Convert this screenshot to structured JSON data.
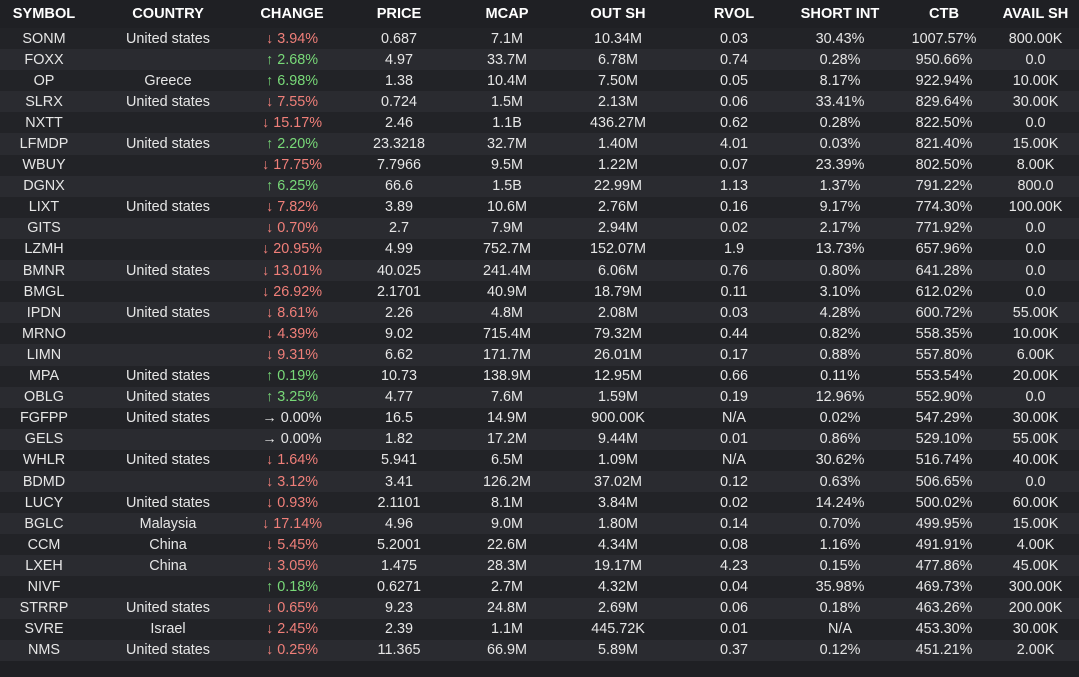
{
  "colors": {
    "background": "#1f2024",
    "row_alt": "#2a2b30",
    "down": "#f07f79",
    "up": "#78d978",
    "text": "#e6e6e6"
  },
  "headers": [
    "SYMBOL",
    "COUNTRY",
    "CHANGE",
    "PRICE",
    "MCAP",
    "OUT SH",
    "RVOL",
    "SHORT INT",
    "CTB",
    "AVAIL SH"
  ],
  "rows": [
    {
      "symbol": "SONM",
      "country": "United states",
      "dir": "down",
      "arrow": "↓",
      "change": "3.94%",
      "price": "0.687",
      "mcap": "7.1M",
      "out_sh": "10.34M",
      "rvol": "0.03",
      "short_int": "30.43%",
      "ctb": "1007.57%",
      "avail_sh": "800.00K"
    },
    {
      "symbol": "FOXX",
      "country": "",
      "dir": "up",
      "arrow": "↑",
      "change": "2.68%",
      "price": "4.97",
      "mcap": "33.7M",
      "out_sh": "6.78M",
      "rvol": "0.74",
      "short_int": "0.28%",
      "ctb": "950.66%",
      "avail_sh": "0.0"
    },
    {
      "symbol": "OP",
      "country": "Greece",
      "dir": "up",
      "arrow": "↑",
      "change": "6.98%",
      "price": "1.38",
      "mcap": "10.4M",
      "out_sh": "7.50M",
      "rvol": "0.05",
      "short_int": "8.17%",
      "ctb": "922.94%",
      "avail_sh": "10.00K"
    },
    {
      "symbol": "SLRX",
      "country": "United states",
      "dir": "down",
      "arrow": "↓",
      "change": "7.55%",
      "price": "0.724",
      "mcap": "1.5M",
      "out_sh": "2.13M",
      "rvol": "0.06",
      "short_int": "33.41%",
      "ctb": "829.64%",
      "avail_sh": "30.00K"
    },
    {
      "symbol": "NXTT",
      "country": "",
      "dir": "down",
      "arrow": "↓",
      "change": "15.17%",
      "price": "2.46",
      "mcap": "1.1B",
      "out_sh": "436.27M",
      "rvol": "0.62",
      "short_int": "0.28%",
      "ctb": "822.50%",
      "avail_sh": "0.0"
    },
    {
      "symbol": "LFMDP",
      "country": "United states",
      "dir": "up",
      "arrow": "↑",
      "change": "2.20%",
      "price": "23.3218",
      "mcap": "32.7M",
      "out_sh": "1.40M",
      "rvol": "4.01",
      "short_int": "0.03%",
      "ctb": "821.40%",
      "avail_sh": "15.00K"
    },
    {
      "symbol": "WBUY",
      "country": "",
      "dir": "down",
      "arrow": "↓",
      "change": "17.75%",
      "price": "7.7966",
      "mcap": "9.5M",
      "out_sh": "1.22M",
      "rvol": "0.07",
      "short_int": "23.39%",
      "ctb": "802.50%",
      "avail_sh": "8.00K"
    },
    {
      "symbol": "DGNX",
      "country": "",
      "dir": "up",
      "arrow": "↑",
      "change": "6.25%",
      "price": "66.6",
      "mcap": "1.5B",
      "out_sh": "22.99M",
      "rvol": "1.13",
      "short_int": "1.37%",
      "ctb": "791.22%",
      "avail_sh": "800.0"
    },
    {
      "symbol": "LIXT",
      "country": "United states",
      "dir": "down",
      "arrow": "↓",
      "change": "7.82%",
      "price": "3.89",
      "mcap": "10.6M",
      "out_sh": "2.76M",
      "rvol": "0.16",
      "short_int": "9.17%",
      "ctb": "774.30%",
      "avail_sh": "100.00K"
    },
    {
      "symbol": "GITS",
      "country": "",
      "dir": "down",
      "arrow": "↓",
      "change": "0.70%",
      "price": "2.7",
      "mcap": "7.9M",
      "out_sh": "2.94M",
      "rvol": "0.02",
      "short_int": "2.17%",
      "ctb": "771.92%",
      "avail_sh": "0.0"
    },
    {
      "symbol": "LZMH",
      "country": "",
      "dir": "down",
      "arrow": "↓",
      "change": "20.95%",
      "price": "4.99",
      "mcap": "752.7M",
      "out_sh": "152.07M",
      "rvol": "1.9",
      "short_int": "13.73%",
      "ctb": "657.96%",
      "avail_sh": "0.0"
    },
    {
      "symbol": "BMNR",
      "country": "United states",
      "dir": "down",
      "arrow": "↓",
      "change": "13.01%",
      "price": "40.025",
      "mcap": "241.4M",
      "out_sh": "6.06M",
      "rvol": "0.76",
      "short_int": "0.80%",
      "ctb": "641.28%",
      "avail_sh": "0.0"
    },
    {
      "symbol": "BMGL",
      "country": "",
      "dir": "down",
      "arrow": "↓",
      "change": "26.92%",
      "price": "2.1701",
      "mcap": "40.9M",
      "out_sh": "18.79M",
      "rvol": "0.11",
      "short_int": "3.10%",
      "ctb": "612.02%",
      "avail_sh": "0.0"
    },
    {
      "symbol": "IPDN",
      "country": "United states",
      "dir": "down",
      "arrow": "↓",
      "change": "8.61%",
      "price": "2.26",
      "mcap": "4.8M",
      "out_sh": "2.08M",
      "rvol": "0.03",
      "short_int": "4.28%",
      "ctb": "600.72%",
      "avail_sh": "55.00K"
    },
    {
      "symbol": "MRNO",
      "country": "",
      "dir": "down",
      "arrow": "↓",
      "change": "4.39%",
      "price": "9.02",
      "mcap": "715.4M",
      "out_sh": "79.32M",
      "rvol": "0.44",
      "short_int": "0.82%",
      "ctb": "558.35%",
      "avail_sh": "10.00K"
    },
    {
      "symbol": "LIMN",
      "country": "",
      "dir": "down",
      "arrow": "↓",
      "change": "9.31%",
      "price": "6.62",
      "mcap": "171.7M",
      "out_sh": "26.01M",
      "rvol": "0.17",
      "short_int": "0.88%",
      "ctb": "557.80%",
      "avail_sh": "6.00K"
    },
    {
      "symbol": "MPA",
      "country": "United states",
      "dir": "up",
      "arrow": "↑",
      "change": "0.19%",
      "price": "10.73",
      "mcap": "138.9M",
      "out_sh": "12.95M",
      "rvol": "0.66",
      "short_int": "0.11%",
      "ctb": "553.54%",
      "avail_sh": "20.00K"
    },
    {
      "symbol": "OBLG",
      "country": "United states",
      "dir": "up",
      "arrow": "↑",
      "change": "3.25%",
      "price": "4.77",
      "mcap": "7.6M",
      "out_sh": "1.59M",
      "rvol": "0.19",
      "short_int": "12.96%",
      "ctb": "552.90%",
      "avail_sh": "0.0"
    },
    {
      "symbol": "FGFPP",
      "country": "United states",
      "dir": "flat",
      "arrow": "→",
      "change": "0.00%",
      "price": "16.5",
      "mcap": "14.9M",
      "out_sh": "900.00K",
      "rvol": "N/A",
      "short_int": "0.02%",
      "ctb": "547.29%",
      "avail_sh": "30.00K"
    },
    {
      "symbol": "GELS",
      "country": "",
      "dir": "flat",
      "arrow": "→",
      "change": "0.00%",
      "price": "1.82",
      "mcap": "17.2M",
      "out_sh": "9.44M",
      "rvol": "0.01",
      "short_int": "0.86%",
      "ctb": "529.10%",
      "avail_sh": "55.00K"
    },
    {
      "symbol": "WHLR",
      "country": "United states",
      "dir": "down",
      "arrow": "↓",
      "change": "1.64%",
      "price": "5.941",
      "mcap": "6.5M",
      "out_sh": "1.09M",
      "rvol": "N/A",
      "short_int": "30.62%",
      "ctb": "516.74%",
      "avail_sh": "40.00K"
    },
    {
      "symbol": "BDMD",
      "country": "",
      "dir": "down",
      "arrow": "↓",
      "change": "3.12%",
      "price": "3.41",
      "mcap": "126.2M",
      "out_sh": "37.02M",
      "rvol": "0.12",
      "short_int": "0.63%",
      "ctb": "506.65%",
      "avail_sh": "0.0"
    },
    {
      "symbol": "LUCY",
      "country": "United states",
      "dir": "down",
      "arrow": "↓",
      "change": "0.93%",
      "price": "2.1101",
      "mcap": "8.1M",
      "out_sh": "3.84M",
      "rvol": "0.02",
      "short_int": "14.24%",
      "ctb": "500.02%",
      "avail_sh": "60.00K"
    },
    {
      "symbol": "BGLC",
      "country": "Malaysia",
      "dir": "down",
      "arrow": "↓",
      "change": "17.14%",
      "price": "4.96",
      "mcap": "9.0M",
      "out_sh": "1.80M",
      "rvol": "0.14",
      "short_int": "0.70%",
      "ctb": "499.95%",
      "avail_sh": "15.00K"
    },
    {
      "symbol": "CCM",
      "country": "China",
      "dir": "down",
      "arrow": "↓",
      "change": "5.45%",
      "price": "5.2001",
      "mcap": "22.6M",
      "out_sh": "4.34M",
      "rvol": "0.08",
      "short_int": "1.16%",
      "ctb": "491.91%",
      "avail_sh": "4.00K"
    },
    {
      "symbol": "LXEH",
      "country": "China",
      "dir": "down",
      "arrow": "↓",
      "change": "3.05%",
      "price": "1.475",
      "mcap": "28.3M",
      "out_sh": "19.17M",
      "rvol": "4.23",
      "short_int": "0.15%",
      "ctb": "477.86%",
      "avail_sh": "45.00K"
    },
    {
      "symbol": "NIVF",
      "country": "",
      "dir": "up",
      "arrow": "↑",
      "change": "0.18%",
      "price": "0.6271",
      "mcap": "2.7M",
      "out_sh": "4.32M",
      "rvol": "0.04",
      "short_int": "35.98%",
      "ctb": "469.73%",
      "avail_sh": "300.00K"
    },
    {
      "symbol": "STRRP",
      "country": "United states",
      "dir": "down",
      "arrow": "↓",
      "change": "0.65%",
      "price": "9.23",
      "mcap": "24.8M",
      "out_sh": "2.69M",
      "rvol": "0.06",
      "short_int": "0.18%",
      "ctb": "463.26%",
      "avail_sh": "200.00K"
    },
    {
      "symbol": "SVRE",
      "country": "Israel",
      "dir": "down",
      "arrow": "↓",
      "change": "2.45%",
      "price": "2.39",
      "mcap": "1.1M",
      "out_sh": "445.72K",
      "rvol": "0.01",
      "short_int": "N/A",
      "ctb": "453.30%",
      "avail_sh": "30.00K"
    },
    {
      "symbol": "NMS",
      "country": "United states",
      "dir": "down",
      "arrow": "↓",
      "change": "0.25%",
      "price": "11.365",
      "mcap": "66.9M",
      "out_sh": "5.89M",
      "rvol": "0.37",
      "short_int": "0.12%",
      "ctb": "451.21%",
      "avail_sh": "2.00K"
    }
  ]
}
